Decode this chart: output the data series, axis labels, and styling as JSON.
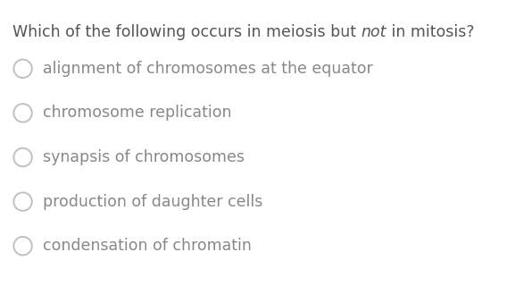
{
  "title_part1": "Which of the following occurs in meiosis but ",
  "title_part2": "not",
  "title_part3": " in mitosis?",
  "options": [
    "alignment of chromosomes at the equator",
    "chromosome replication",
    "synapsis of chromosomes",
    "production of daughter cells",
    "condensation of chromatin"
  ],
  "background_color": "#ffffff",
  "text_color": "#888888",
  "title_color": "#555555",
  "circle_edge_color": "#c0c0c0",
  "title_fontsize": 12.5,
  "option_fontsize": 12.5,
  "figsize": [
    5.68,
    3.2
  ],
  "dpi": 100
}
